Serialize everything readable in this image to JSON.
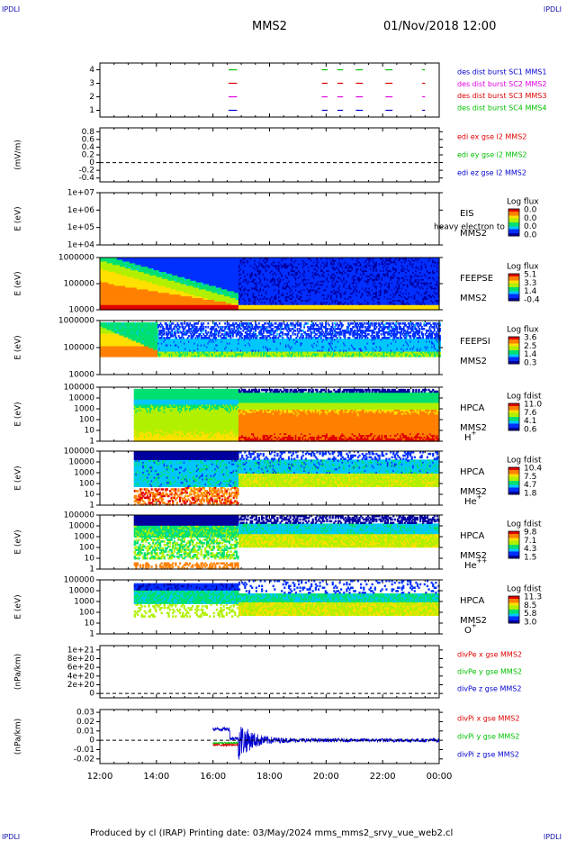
{
  "header": {
    "corner_left": "IPDLI",
    "corner_right": "IPDLI",
    "spacecraft": "MMS2",
    "datetime": "01/Nov/2018 12:00"
  },
  "footer": {
    "text": "Produced by cl (IRAP)   Printing date: 03/May/2024   mms_mms2_srvy_vue_web2.cl",
    "corner_left": "IPDLI",
    "corner_right": "IPDLI"
  },
  "x_axis": {
    "ticks": [
      "12:00",
      "14:00",
      "16:00",
      "18:00",
      "20:00",
      "22:00",
      "00:00"
    ],
    "range_hours": [
      12,
      24
    ]
  },
  "colors": {
    "red": "#e00000",
    "green": "#00c000",
    "blue": "#0000d0",
    "magenta": "#e000e0",
    "dark_blue": "#000080",
    "cmap": [
      "#0000a0",
      "#0030ff",
      "#00c8ff",
      "#00e070",
      "#b0f000",
      "#ffe000",
      "#ff8000",
      "#e00000"
    ]
  },
  "chart_data": [
    {
      "type": "line",
      "name": "burst",
      "ylim": [
        0.5,
        4.5
      ],
      "yticks": [
        "4",
        "3",
        "2",
        "1"
      ],
      "legend": [
        {
          "text": "des dist burst SC1 MMS1",
          "color": "#0000d0"
        },
        {
          "text": "des dist burst SC2 MMS2",
          "color": "#e000e0"
        },
        {
          "text": "des dist burst SC3 MMS3",
          "color": "#e00000"
        },
        {
          "text": "des dist burst SC4 MMS4",
          "color": "#00c000"
        }
      ],
      "segments_hours": [
        [
          16.55,
          16.85
        ],
        [
          19.85,
          20.05
        ],
        [
          20.4,
          20.6
        ],
        [
          21.05,
          21.3
        ],
        [
          22.1,
          22.35
        ],
        [
          23.4,
          23.5
        ]
      ]
    },
    {
      "type": "line",
      "name": "edi",
      "ylabel": "(mV/m)",
      "ylim": [
        -0.5,
        0.9
      ],
      "yticks": [
        "0.8",
        "0.6",
        "0.4",
        "0.2",
        "0",
        "-0.2",
        "-0.4"
      ],
      "ytick_values": [
        0.8,
        0.6,
        0.4,
        0.2,
        0,
        -0.2,
        -0.4
      ],
      "legend": [
        {
          "text": "edi ex gse l2 MMS2",
          "color": "#e00000"
        },
        {
          "text": "edi ey gse l2 MMS2",
          "color": "#00c000"
        },
        {
          "text": "edi ez gse l2 MMS2",
          "color": "#0000d0"
        }
      ]
    },
    {
      "type": "heatmap",
      "name": "eis",
      "ylabel": "E (eV)",
      "yticks": [
        "1e+07",
        "1e+06",
        "1e+05",
        "1e+04"
      ],
      "label_lines": [
        "EIS",
        "MMS2"
      ],
      "overlay_text": "heavy electron to",
      "colorbar": {
        "title": "Log flux",
        "ticks": [
          "0.0",
          "0.0",
          "0.0",
          "0.0"
        ]
      }
    },
    {
      "type": "heatmap",
      "name": "feepse",
      "ylabel": "E (eV)",
      "yticks": [
        "1000000",
        "100000",
        "10000"
      ],
      "label_lines": [
        "FEEPSE",
        "MMS2"
      ],
      "colorbar": {
        "title": "Log flux",
        "ticks": [
          "5.1",
          "3.3",
          "1.4",
          "-0.4"
        ]
      }
    },
    {
      "type": "heatmap",
      "name": "feepsi",
      "ylabel": "E (eV)",
      "yticks": [
        "1000000",
        "100000",
        "10000"
      ],
      "label_lines": [
        "FEEPSI",
        "MMS2"
      ],
      "colorbar": {
        "title": "Log flux",
        "ticks": [
          "3.6",
          "2.5",
          "1.4",
          "0.3"
        ]
      }
    },
    {
      "type": "heatmap",
      "name": "hpca-h",
      "ylabel": "E (eV)",
      "yticks": [
        "100000",
        "10000",
        "1000",
        "100",
        "10",
        "1"
      ],
      "label_lines": [
        "HPCA",
        "MMS2"
      ],
      "species": "H",
      "species_sup": "+",
      "colorbar": {
        "title": "Log fdist",
        "ticks": [
          "11.0",
          "7.6",
          "4.1",
          "0.6"
        ]
      }
    },
    {
      "type": "heatmap",
      "name": "hpca-he",
      "ylabel": "E (eV)",
      "yticks": [
        "100000",
        "10000",
        "1000",
        "100",
        "10",
        "1"
      ],
      "label_lines": [
        "HPCA",
        "MMS2"
      ],
      "species": "He",
      "species_sup": "+",
      "colorbar": {
        "title": "Log fdist",
        "ticks": [
          "10.4",
          "7.5",
          "4.7",
          "1.8"
        ]
      }
    },
    {
      "type": "heatmap",
      "name": "hpca-hepp",
      "ylabel": "E (eV)",
      "yticks": [
        "100000",
        "10000",
        "1000",
        "100",
        "10",
        "1"
      ],
      "label_lines": [
        "HPCA",
        "MMS2"
      ],
      "species": "He",
      "species_sup": "++",
      "colorbar": {
        "title": "Log fdist",
        "ticks": [
          "9.8",
          "7.1",
          "4.3",
          "1.5"
        ]
      }
    },
    {
      "type": "heatmap",
      "name": "hpca-o",
      "ylabel": "E (eV)",
      "yticks": [
        "100000",
        "10000",
        "1000",
        "100",
        "10",
        "1"
      ],
      "label_lines": [
        "HPCA",
        "MMS2"
      ],
      "species": "O",
      "species_sup": "+",
      "colorbar": {
        "title": "Log fdist",
        "ticks": [
          "11.3",
          "8.5",
          "5.8",
          "3.0"
        ]
      }
    },
    {
      "type": "line",
      "name": "divpe",
      "ylabel": "(nPa/km)",
      "ylim": [
        -1e+20,
        1.1e+21
      ],
      "yticks": [
        "1e+21",
        "8e+20",
        "6e+20",
        "4e+20",
        "2e+20",
        "0"
      ],
      "ytick_values": [
        1e+21,
        8e+20,
        6e+20,
        4e+20,
        2e+20,
        0
      ],
      "legend": [
        {
          "text": "divPe x gse MMS2",
          "color": "#e00000"
        },
        {
          "text": "divPe y gse MMS2",
          "color": "#00c000"
        },
        {
          "text": "divPe z gse MMS2",
          "color": "#0000d0"
        }
      ]
    },
    {
      "type": "line",
      "name": "divpi",
      "ylabel": "(nPa/km)",
      "ylim": [
        -0.025,
        0.033
      ],
      "yticks": [
        "0.03",
        "0.02",
        "0.01",
        "0",
        "-0.01",
        "-0.02"
      ],
      "ytick_values": [
        0.03,
        0.02,
        0.01,
        0,
        -0.01,
        -0.02
      ],
      "legend": [
        {
          "text": "divPi x gse MMS2",
          "color": "#e00000"
        },
        {
          "text": "divPi y gse MMS2",
          "color": "#00c000"
        },
        {
          "text": "divPi z gse MMS2",
          "color": "#0000d0"
        }
      ],
      "series_x_range_hours": [
        [
          16.0,
          16.9
        ],
        [
          16.0,
          16.9
        ],
        [
          16.0,
          24.0
        ]
      ]
    }
  ]
}
